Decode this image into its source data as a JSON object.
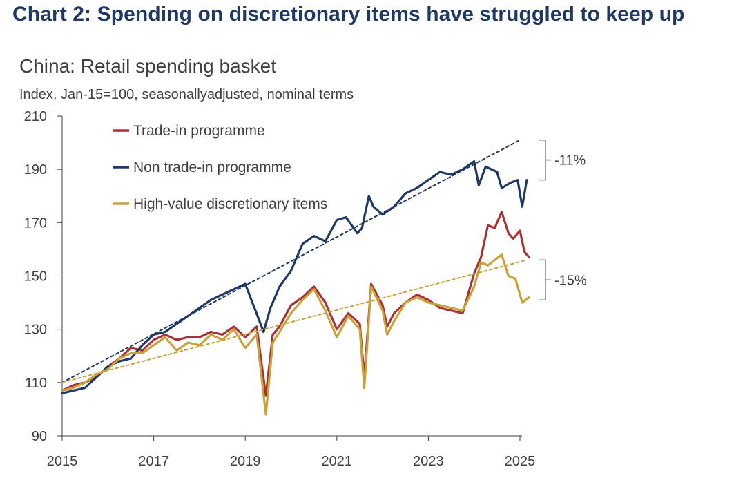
{
  "heading": "Chart 2: Spending on discretionary items have struggled to keep up",
  "subtitle": "China: Retail spending basket",
  "units": "Index, Jan-15=100, seasonallyadjusted, nominal terms",
  "colors": {
    "trade_in": "#a83236",
    "non_trade_in": "#1f3864",
    "high_value": "#c9a23c",
    "axis": "#404040"
  },
  "chart_data": {
    "type": "line",
    "title": "China: Retail spending basket",
    "ylabel": "Index, Jan-15=100, seasonallyadjusted, nominal terms",
    "xlim": [
      2015,
      2025.25
    ],
    "ylim": [
      90,
      210
    ],
    "yticks": [
      90,
      110,
      130,
      150,
      170,
      190,
      210
    ],
    "xticks": [
      2015,
      2017,
      2019,
      2021,
      2023,
      2025
    ],
    "grid": false,
    "legend": "top-left",
    "series": [
      {
        "name": "Trade-in programme",
        "key": "trade_in",
        "style": "solid",
        "points": [
          [
            2015.0,
            107
          ],
          [
            2015.25,
            109
          ],
          [
            2015.5,
            110
          ],
          [
            2015.75,
            112
          ],
          [
            2016.0,
            116
          ],
          [
            2016.25,
            119
          ],
          [
            2016.5,
            123
          ],
          [
            2016.75,
            122
          ],
          [
            2017.0,
            126
          ],
          [
            2017.25,
            128
          ],
          [
            2017.5,
            126
          ],
          [
            2017.75,
            127
          ],
          [
            2018.0,
            127
          ],
          [
            2018.25,
            129
          ],
          [
            2018.5,
            128
          ],
          [
            2018.75,
            131
          ],
          [
            2019.0,
            127
          ],
          [
            2019.25,
            131
          ],
          [
            2019.45,
            105
          ],
          [
            2019.6,
            128
          ],
          [
            2019.75,
            131
          ],
          [
            2020.0,
            139
          ],
          [
            2020.25,
            142
          ],
          [
            2020.5,
            146
          ],
          [
            2020.75,
            140
          ],
          [
            2021.0,
            130
          ],
          [
            2021.25,
            136
          ],
          [
            2021.5,
            132
          ],
          [
            2021.6,
            112
          ],
          [
            2021.75,
            147
          ],
          [
            2022.0,
            139
          ],
          [
            2022.1,
            131
          ],
          [
            2022.25,
            136
          ],
          [
            2022.5,
            140
          ],
          [
            2022.75,
            143
          ],
          [
            2023.0,
            141
          ],
          [
            2023.25,
            138
          ],
          [
            2023.5,
            137
          ],
          [
            2023.75,
            136
          ],
          [
            2024.0,
            151
          ],
          [
            2024.15,
            157
          ],
          [
            2024.3,
            169
          ],
          [
            2024.45,
            168
          ],
          [
            2024.6,
            174
          ],
          [
            2024.75,
            166
          ],
          [
            2024.85,
            164
          ],
          [
            2025.0,
            167
          ],
          [
            2025.1,
            159
          ],
          [
            2025.2,
            157
          ]
        ]
      },
      {
        "name": "Non trade-in programme",
        "key": "non_trade_in",
        "style": "solid",
        "points": [
          [
            2015.0,
            106
          ],
          [
            2015.25,
            107
          ],
          [
            2015.5,
            108
          ],
          [
            2015.75,
            112
          ],
          [
            2016.0,
            116
          ],
          [
            2016.25,
            118
          ],
          [
            2016.5,
            119
          ],
          [
            2016.75,
            124
          ],
          [
            2017.0,
            128
          ],
          [
            2017.25,
            129
          ],
          [
            2017.5,
            132
          ],
          [
            2017.75,
            135
          ],
          [
            2018.0,
            138
          ],
          [
            2018.25,
            141
          ],
          [
            2018.5,
            143
          ],
          [
            2018.75,
            145
          ],
          [
            2019.0,
            147
          ],
          [
            2019.2,
            138
          ],
          [
            2019.4,
            129
          ],
          [
            2019.55,
            138
          ],
          [
            2019.75,
            146
          ],
          [
            2020.0,
            152
          ],
          [
            2020.25,
            162
          ],
          [
            2020.5,
            165
          ],
          [
            2020.75,
            163
          ],
          [
            2021.0,
            171
          ],
          [
            2021.2,
            172
          ],
          [
            2021.45,
            166
          ],
          [
            2021.55,
            168
          ],
          [
            2021.7,
            180
          ],
          [
            2021.8,
            176
          ],
          [
            2022.0,
            173
          ],
          [
            2022.25,
            176
          ],
          [
            2022.5,
            181
          ],
          [
            2022.75,
            183
          ],
          [
            2023.0,
            186
          ],
          [
            2023.25,
            189
          ],
          [
            2023.5,
            188
          ],
          [
            2023.75,
            190
          ],
          [
            2024.0,
            193
          ],
          [
            2024.1,
            184
          ],
          [
            2024.25,
            191
          ],
          [
            2024.5,
            189
          ],
          [
            2024.6,
            183
          ],
          [
            2024.8,
            185
          ],
          [
            2024.95,
            186
          ],
          [
            2025.05,
            176
          ],
          [
            2025.15,
            186
          ]
        ]
      },
      {
        "name": "High-value discretionary items",
        "key": "high_value",
        "style": "solid",
        "points": [
          [
            2015.0,
            107
          ],
          [
            2015.25,
            108
          ],
          [
            2015.5,
            110
          ],
          [
            2015.75,
            113
          ],
          [
            2016.0,
            115
          ],
          [
            2016.25,
            119
          ],
          [
            2016.5,
            121
          ],
          [
            2016.75,
            121
          ],
          [
            2017.0,
            124
          ],
          [
            2017.25,
            127
          ],
          [
            2017.5,
            122
          ],
          [
            2017.75,
            125
          ],
          [
            2018.0,
            124
          ],
          [
            2018.25,
            128
          ],
          [
            2018.5,
            126
          ],
          [
            2018.75,
            130
          ],
          [
            2019.0,
            123
          ],
          [
            2019.25,
            128
          ],
          [
            2019.45,
            98
          ],
          [
            2019.6,
            125
          ],
          [
            2019.75,
            129
          ],
          [
            2020.0,
            136
          ],
          [
            2020.25,
            141
          ],
          [
            2020.5,
            145
          ],
          [
            2020.75,
            137
          ],
          [
            2021.0,
            127
          ],
          [
            2021.25,
            135
          ],
          [
            2021.5,
            130
          ],
          [
            2021.6,
            108
          ],
          [
            2021.75,
            146
          ],
          [
            2022.0,
            137
          ],
          [
            2022.1,
            128
          ],
          [
            2022.25,
            133
          ],
          [
            2022.5,
            140
          ],
          [
            2022.75,
            142
          ],
          [
            2023.0,
            140
          ],
          [
            2023.25,
            139
          ],
          [
            2023.5,
            138
          ],
          [
            2023.75,
            137
          ],
          [
            2024.0,
            146
          ],
          [
            2024.15,
            155
          ],
          [
            2024.3,
            154
          ],
          [
            2024.45,
            156
          ],
          [
            2024.6,
            158
          ],
          [
            2024.75,
            150
          ],
          [
            2024.9,
            149
          ],
          [
            2025.05,
            140
          ],
          [
            2025.2,
            142
          ]
        ]
      },
      {
        "name": "",
        "key": "non_trade_in",
        "style": "dashed",
        "points": [
          [
            2015.0,
            110
          ],
          [
            2025.0,
            201
          ]
        ]
      },
      {
        "name": "",
        "key": "high_value",
        "style": "dashed",
        "points": [
          [
            2015.0,
            110
          ],
          [
            2025.15,
            156
          ]
        ]
      }
    ],
    "annotations": [
      {
        "label": "-11%",
        "y_top": 201,
        "y_bottom": 186
      },
      {
        "label": "-15%",
        "y_top": 156,
        "y_bottom": 141
      }
    ]
  }
}
